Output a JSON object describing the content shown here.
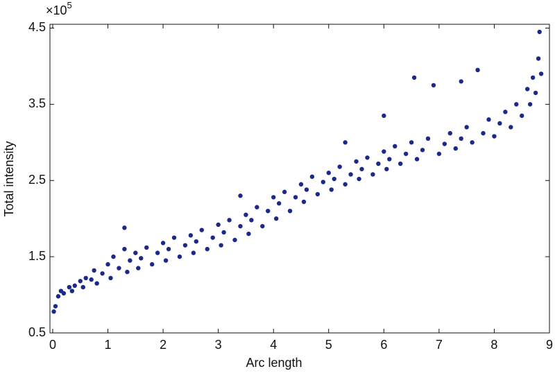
{
  "chart_data": {
    "type": "scatter",
    "x_label": "Arc length",
    "y_label": "Total intensity",
    "y_scale_label": {
      "base": "×10",
      "exponent": "5"
    },
    "xlim": [
      -0.05,
      9
    ],
    "ylim": [
      0.5,
      4.55
    ],
    "xticks": [
      0,
      1,
      2,
      3,
      4,
      5,
      6,
      7,
      8,
      9
    ],
    "yticks": [
      0.5,
      1.5,
      2.5,
      3.5,
      4.5
    ],
    "grid": false,
    "series": [
      {
        "color": "#1a2a8c",
        "x": [
          0.02,
          0.05,
          0.1,
          0.15,
          0.2,
          0.3,
          0.35,
          0.4,
          0.5,
          0.55,
          0.6,
          0.7,
          0.75,
          0.8,
          0.9,
          1.0,
          1.05,
          1.1,
          1.2,
          1.3,
          1.35,
          1.4,
          1.5,
          1.55,
          1.6,
          1.7,
          1.8,
          1.9,
          2.0,
          2.05,
          2.1,
          2.2,
          2.3,
          2.4,
          2.5,
          2.55,
          2.6,
          2.7,
          2.8,
          2.9,
          3.0,
          3.05,
          3.1,
          3.2,
          3.3,
          3.4,
          3.5,
          3.55,
          3.6,
          3.7,
          3.8,
          3.9,
          4.0,
          4.05,
          4.1,
          4.2,
          4.3,
          4.4,
          4.5,
          4.55,
          4.6,
          4.7,
          4.8,
          4.9,
          5.0,
          5.05,
          5.1,
          5.2,
          5.3,
          5.4,
          5.5,
          5.55,
          5.6,
          5.7,
          5.8,
          5.9,
          6.0,
          6.05,
          6.1,
          6.2,
          6.3,
          6.4,
          6.5,
          6.55,
          6.6,
          6.7,
          6.8,
          6.9,
          7.0,
          7.1,
          7.2,
          7.3,
          7.4,
          7.5,
          7.6,
          7.7,
          7.8,
          7.9,
          8.0,
          8.1,
          8.2,
          8.3,
          8.4,
          8.5,
          8.6,
          8.65,
          8.7,
          8.75,
          8.8,
          8.85,
          8.82,
          1.3,
          3.4,
          5.3,
          6.0,
          7.4
        ],
        "y": [
          0.78,
          0.85,
          0.98,
          1.05,
          1.02,
          1.1,
          1.05,
          1.12,
          1.18,
          1.1,
          1.22,
          1.2,
          1.32,
          1.15,
          1.28,
          1.4,
          1.22,
          1.5,
          1.35,
          1.6,
          1.3,
          1.45,
          1.55,
          1.35,
          1.48,
          1.62,
          1.4,
          1.55,
          1.68,
          1.45,
          1.6,
          1.75,
          1.5,
          1.65,
          1.78,
          1.55,
          1.7,
          1.85,
          1.6,
          1.75,
          1.92,
          1.65,
          1.82,
          1.98,
          1.72,
          1.9,
          2.05,
          1.8,
          1.98,
          2.15,
          1.9,
          2.1,
          2.28,
          2.0,
          2.2,
          2.35,
          2.1,
          2.28,
          2.45,
          2.22,
          2.38,
          2.55,
          2.32,
          2.48,
          2.6,
          2.38,
          2.52,
          2.68,
          2.45,
          2.58,
          2.75,
          2.52,
          2.65,
          2.8,
          2.58,
          2.72,
          2.88,
          2.65,
          2.78,
          2.95,
          2.72,
          2.85,
          3.0,
          3.85,
          2.78,
          2.9,
          3.05,
          3.75,
          2.85,
          2.98,
          3.12,
          2.92,
          3.05,
          3.2,
          3.0,
          3.95,
          3.12,
          3.3,
          3.08,
          3.25,
          3.4,
          3.2,
          3.5,
          3.35,
          3.7,
          3.5,
          3.85,
          3.65,
          4.1,
          3.9,
          4.45,
          1.88,
          2.3,
          3.0,
          3.35,
          3.8
        ]
      }
    ]
  }
}
